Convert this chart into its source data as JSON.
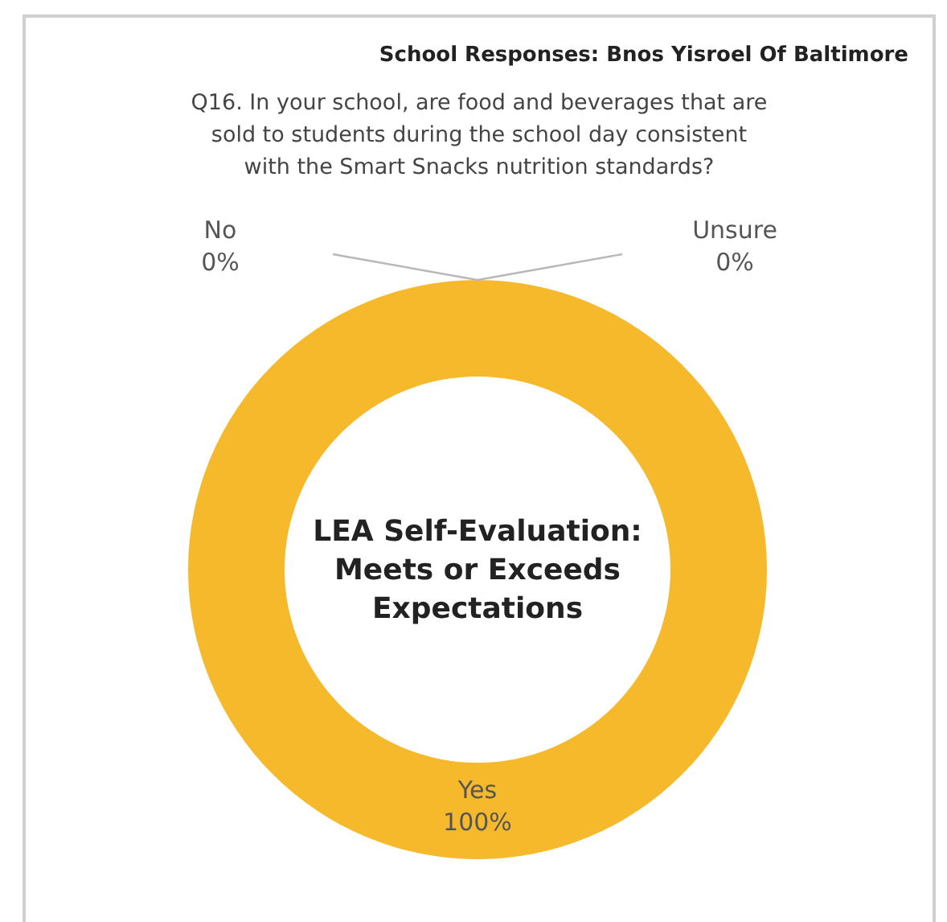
{
  "chart_data": {
    "type": "donut",
    "title": "School Responses: Bnos Yisroel Of Baltimore",
    "subtitle": "Q16. In your school, are food and beverages that are sold to students during the school day consistent with the Smart Snacks nutrition standards?",
    "categories": [
      "Unsure",
      "Yes",
      "No"
    ],
    "values": [
      0,
      100,
      0
    ],
    "colors": [
      "#b8b8b8",
      "#f6b92b",
      "#b8b8b8"
    ],
    "value_labels": [
      "0%",
      "100%",
      "0%"
    ],
    "annotations": [
      "LEA Self-Evaluation: Meets or Exceeds Expectations"
    ]
  }
}
